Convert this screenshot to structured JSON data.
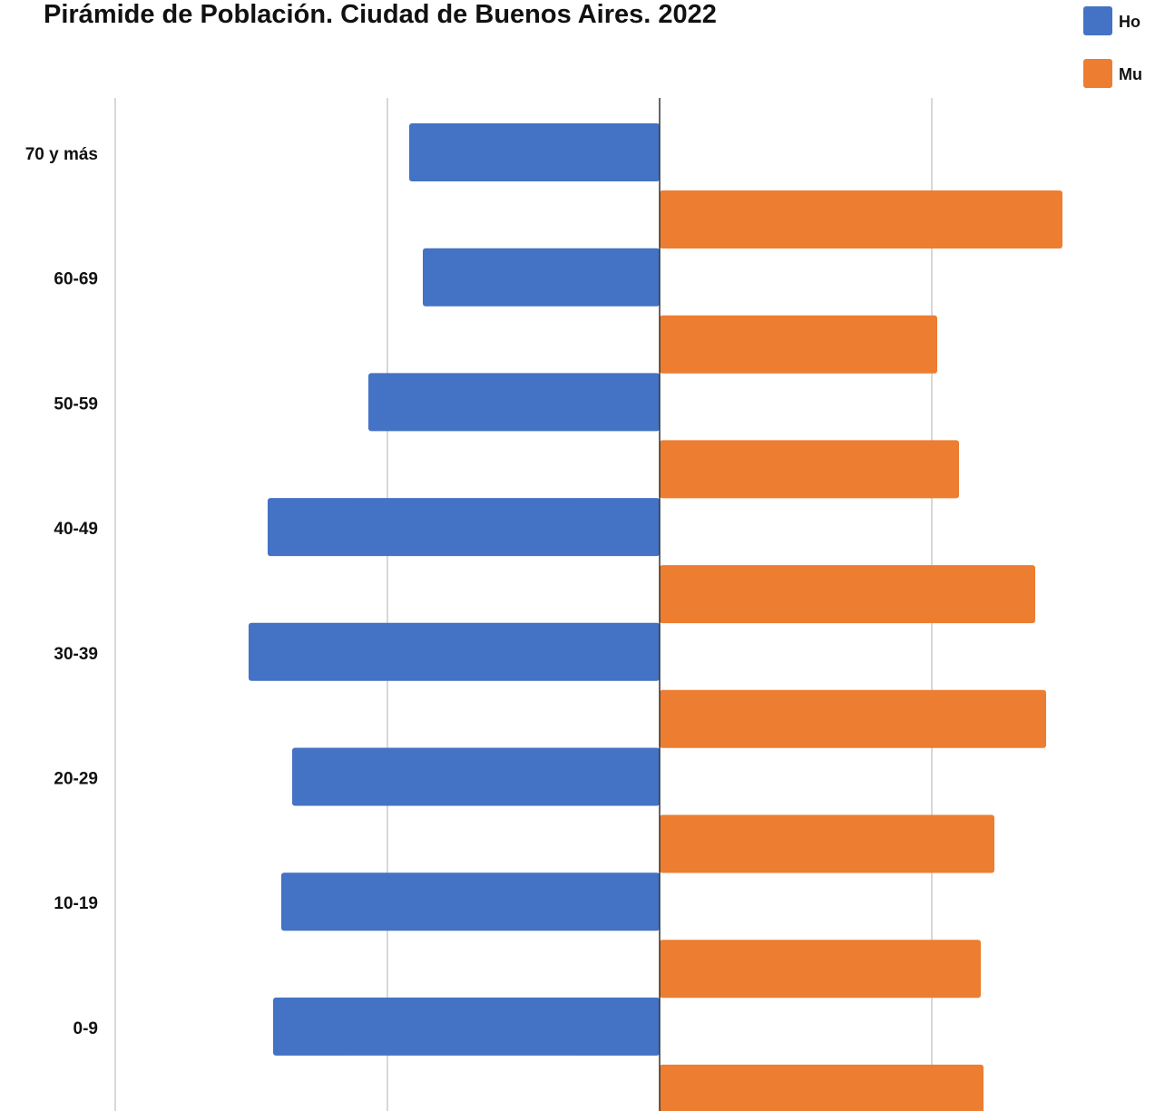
{
  "chart_data": {
    "type": "bar",
    "orientation": "horizontal",
    "title": "Pirámide de Población. Ciudad de Buenos Aires. 2022",
    "categories": [
      "70 y más",
      "60-69",
      "50-59",
      "40-49",
      "30-39",
      "20-29",
      "10-19",
      "0-9"
    ],
    "series": [
      {
        "name": "Hombres",
        "color": "#4472C4",
        "direction": "left",
        "values": [
          9.2,
          8.7,
          10.7,
          14.4,
          15.1,
          13.5,
          13.9,
          14.2
        ]
      },
      {
        "name": "Mujeres",
        "color": "#ED7D31",
        "direction": "right",
        "values": [
          14.8,
          10.2,
          11.0,
          13.8,
          14.2,
          12.3,
          11.8,
          11.9
        ]
      }
    ],
    "grid": true,
    "gridline_values": [
      -20,
      -10,
      0,
      10
    ],
    "legend": "top-right",
    "legend_labels_visible": [
      "Ho",
      "Mu"
    ]
  }
}
